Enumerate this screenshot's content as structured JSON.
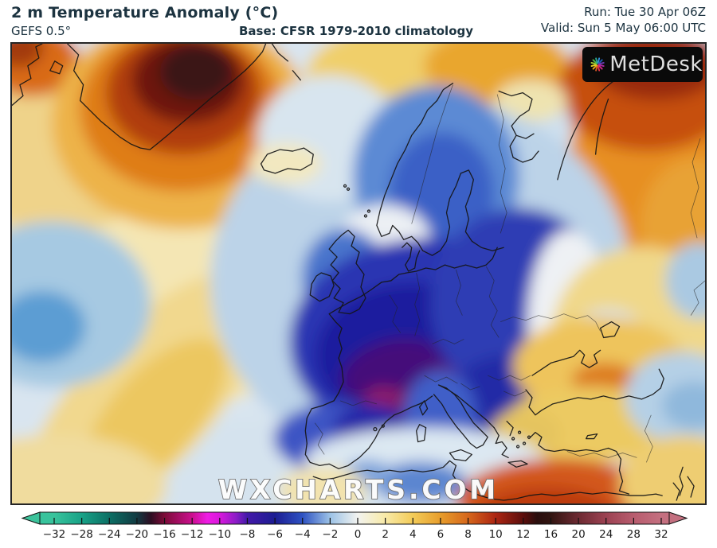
{
  "header": {
    "title": "2 m Temperature Anomaly (°C)",
    "subtitle": "GEFS 0.5°",
    "base": "Base: CFSR 1979-2010 climatology",
    "run": "Run: Tue 30 Apr 06Z",
    "valid": "Valid: Sun 5 May 06:00 UTC",
    "text_color": "#1c3340"
  },
  "map": {
    "watermark": "WXCHARTS.COM",
    "logo": {
      "text": "MetDesk",
      "bg": "#0a0a0a",
      "ray_colors": [
        "#2f8fd8",
        "#1f5fb8",
        "#6a3ab0",
        "#a62aa0",
        "#d02888",
        "#e03048",
        "#d85a20",
        "#e8a818",
        "#e8d028",
        "#a0c830",
        "#50b848",
        "#28a890"
      ]
    }
  },
  "colorbar": {
    "tick_labels": [
      "−32",
      "−28",
      "−24",
      "−20",
      "−16",
      "−12",
      "−10",
      "−8",
      "−6",
      "−4",
      "−2",
      "0",
      "2",
      "4",
      "6",
      "8",
      "10",
      "12",
      "16",
      "20",
      "24",
      "28",
      "32"
    ],
    "left_tip_color": "#3cc39b",
    "right_tip_color": "#c47080",
    "outline_color": "#111111",
    "label_color": "#1a1a1a",
    "stops": [
      {
        "i": 0,
        "c": "#38c39c"
      },
      {
        "i": 1,
        "c": "#18a287"
      },
      {
        "i": 2,
        "c": "#0c6f64"
      },
      {
        "i": 3,
        "c": "#123a42"
      },
      {
        "i": 3.5,
        "c": "#2c0d22"
      },
      {
        "i": 4,
        "c": "#7c0c38"
      },
      {
        "i": 5,
        "c": "#cb0f8e"
      },
      {
        "i": 5.55,
        "c": "#ee1ce4"
      },
      {
        "i": 6,
        "c": "#d818dc"
      },
      {
        "i": 6.6,
        "c": "#8a1cc6"
      },
      {
        "i": 7,
        "c": "#4318a8"
      },
      {
        "i": 8,
        "c": "#1c1c92"
      },
      {
        "i": 9,
        "c": "#2e52c2"
      },
      {
        "i": 10,
        "c": "#9cc2e6"
      },
      {
        "i": 11,
        "c": "#f2f3f0"
      },
      {
        "i": 12,
        "c": "#f8eaa8"
      },
      {
        "i": 13,
        "c": "#f3cb58"
      },
      {
        "i": 14,
        "c": "#e79d2c"
      },
      {
        "i": 15,
        "c": "#d6671c"
      },
      {
        "i": 16,
        "c": "#ac2512"
      },
      {
        "i": 17,
        "c": "#5c0e0c"
      },
      {
        "i": 17.5,
        "c": "#2a0e0d"
      },
      {
        "i": 18,
        "c": "#321511"
      },
      {
        "i": 19,
        "c": "#6d2a32"
      },
      {
        "i": 20,
        "c": "#9c4252"
      },
      {
        "i": 21,
        "c": "#b85c6e"
      },
      {
        "i": 22,
        "c": "#c47080"
      }
    ]
  }
}
